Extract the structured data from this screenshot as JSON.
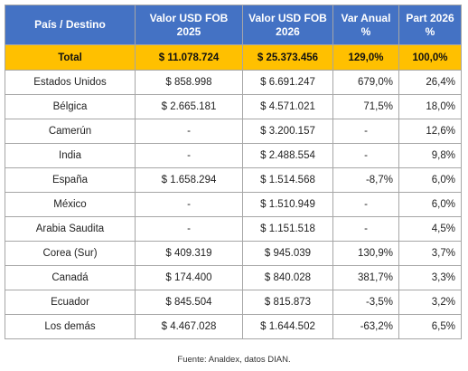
{
  "table": {
    "headers": [
      {
        "line1": "País / Destino",
        "line2": ""
      },
      {
        "line1": "Valor USD FOB",
        "line2": "2025"
      },
      {
        "line1": "Valor USD FOB",
        "line2": "2026"
      },
      {
        "line1": "Var Anual",
        "line2": "%"
      },
      {
        "line1": "Part 2026",
        "line2": "%"
      }
    ],
    "total": {
      "pais": "Total",
      "v2025": "$ 11.078.724",
      "v2026": "$ 25.373.456",
      "var": "129,0%",
      "part": "100,0%"
    },
    "rows": [
      {
        "pais": "Estados Unidos",
        "v2025": "$ 858.998",
        "v2026": "$ 6.691.247",
        "var": "679,0%",
        "part": "26,4%"
      },
      {
        "pais": "Bélgica",
        "v2025": "$ 2.665.181",
        "v2026": "$ 4.571.021",
        "var": "71,5%",
        "part": "18,0%"
      },
      {
        "pais": "Camerún",
        "v2025": "-",
        "v2026": "$ 3.200.157",
        "var": "-",
        "part": "12,6%"
      },
      {
        "pais": "India",
        "v2025": "-",
        "v2026": "$ 2.488.554",
        "var": "-",
        "part": "9,8%"
      },
      {
        "pais": "España",
        "v2025": "$ 1.658.294",
        "v2026": "$ 1.514.568",
        "var": "-8,7%",
        "part": "6,0%"
      },
      {
        "pais": "México",
        "v2025": "-",
        "v2026": "$ 1.510.949",
        "var": "-",
        "part": "6,0%"
      },
      {
        "pais": "Arabia Saudita",
        "v2025": "-",
        "v2026": "$ 1.151.518",
        "var": "-",
        "part": "4,5%"
      },
      {
        "pais": "Corea (Sur)",
        "v2025": "$ 409.319",
        "v2026": "$ 945.039",
        "var": "130,9%",
        "part": "3,7%"
      },
      {
        "pais": "Canadá",
        "v2025": "$ 174.400",
        "v2026": "$ 840.028",
        "var": "381,7%",
        "part": "3,3%"
      },
      {
        "pais": "Ecuador",
        "v2025": "$ 845.504",
        "v2026": "$ 815.873",
        "var": "-3,5%",
        "part": "3,2%"
      },
      {
        "pais": "Los demás",
        "v2025": "$ 4.467.028",
        "v2026": "$ 1.644.502",
        "var": "-63,2%",
        "part": "6,5%"
      }
    ]
  },
  "source": "Fuente: Analdex, datos DIAN."
}
